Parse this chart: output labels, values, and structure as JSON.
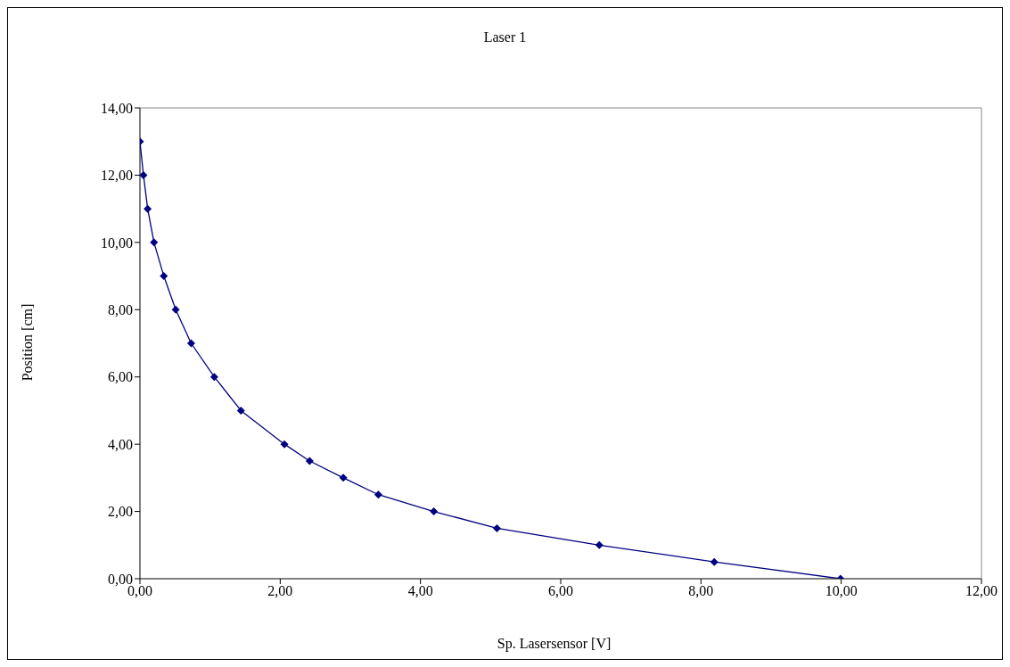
{
  "chart_data": {
    "type": "line",
    "title": "Laser 1",
    "xlabel": "Sp. Lasersensor [V]",
    "ylabel": "Position [cm]",
    "x": [
      0,
      0.05,
      0.11,
      0.2,
      0.34,
      0.51,
      0.73,
      1.06,
      1.44,
      2.06,
      2.42,
      2.9,
      3.4,
      4.19,
      5.09,
      6.55,
      8.19,
      9.99
    ],
    "series": [
      {
        "color": "#000080",
        "values": [
          13,
          12,
          11,
          10,
          9,
          8,
          7,
          6,
          5,
          4,
          3.5,
          3,
          2.5,
          2,
          1.5,
          1,
          0.5,
          0
        ]
      }
    ],
    "xlim": [
      0,
      12
    ],
    "xticks": [
      {
        "value": 0,
        "label": "0,00"
      },
      {
        "value": 2,
        "label": "2,00"
      },
      {
        "value": 4,
        "label": "4,00"
      },
      {
        "value": 6,
        "label": "6,00"
      },
      {
        "value": 8,
        "label": "8,00"
      },
      {
        "value": 10,
        "label": "10,00"
      },
      {
        "value": 12,
        "label": "12,00"
      }
    ],
    "ylim": [
      0,
      14
    ],
    "yticks": [
      {
        "value": 0,
        "label": "0,00"
      },
      {
        "value": 2,
        "label": "2,00"
      },
      {
        "value": 4,
        "label": "4,00"
      },
      {
        "value": 6,
        "label": "6,00"
      },
      {
        "value": 8,
        "label": "8,00"
      },
      {
        "value": 10,
        "label": "10,00"
      },
      {
        "value": 12,
        "label": "12,00"
      },
      {
        "value": 14,
        "label": "14,00"
      }
    ],
    "grid": false,
    "legend": false,
    "marker": "diamond",
    "line_style": "solid"
  }
}
